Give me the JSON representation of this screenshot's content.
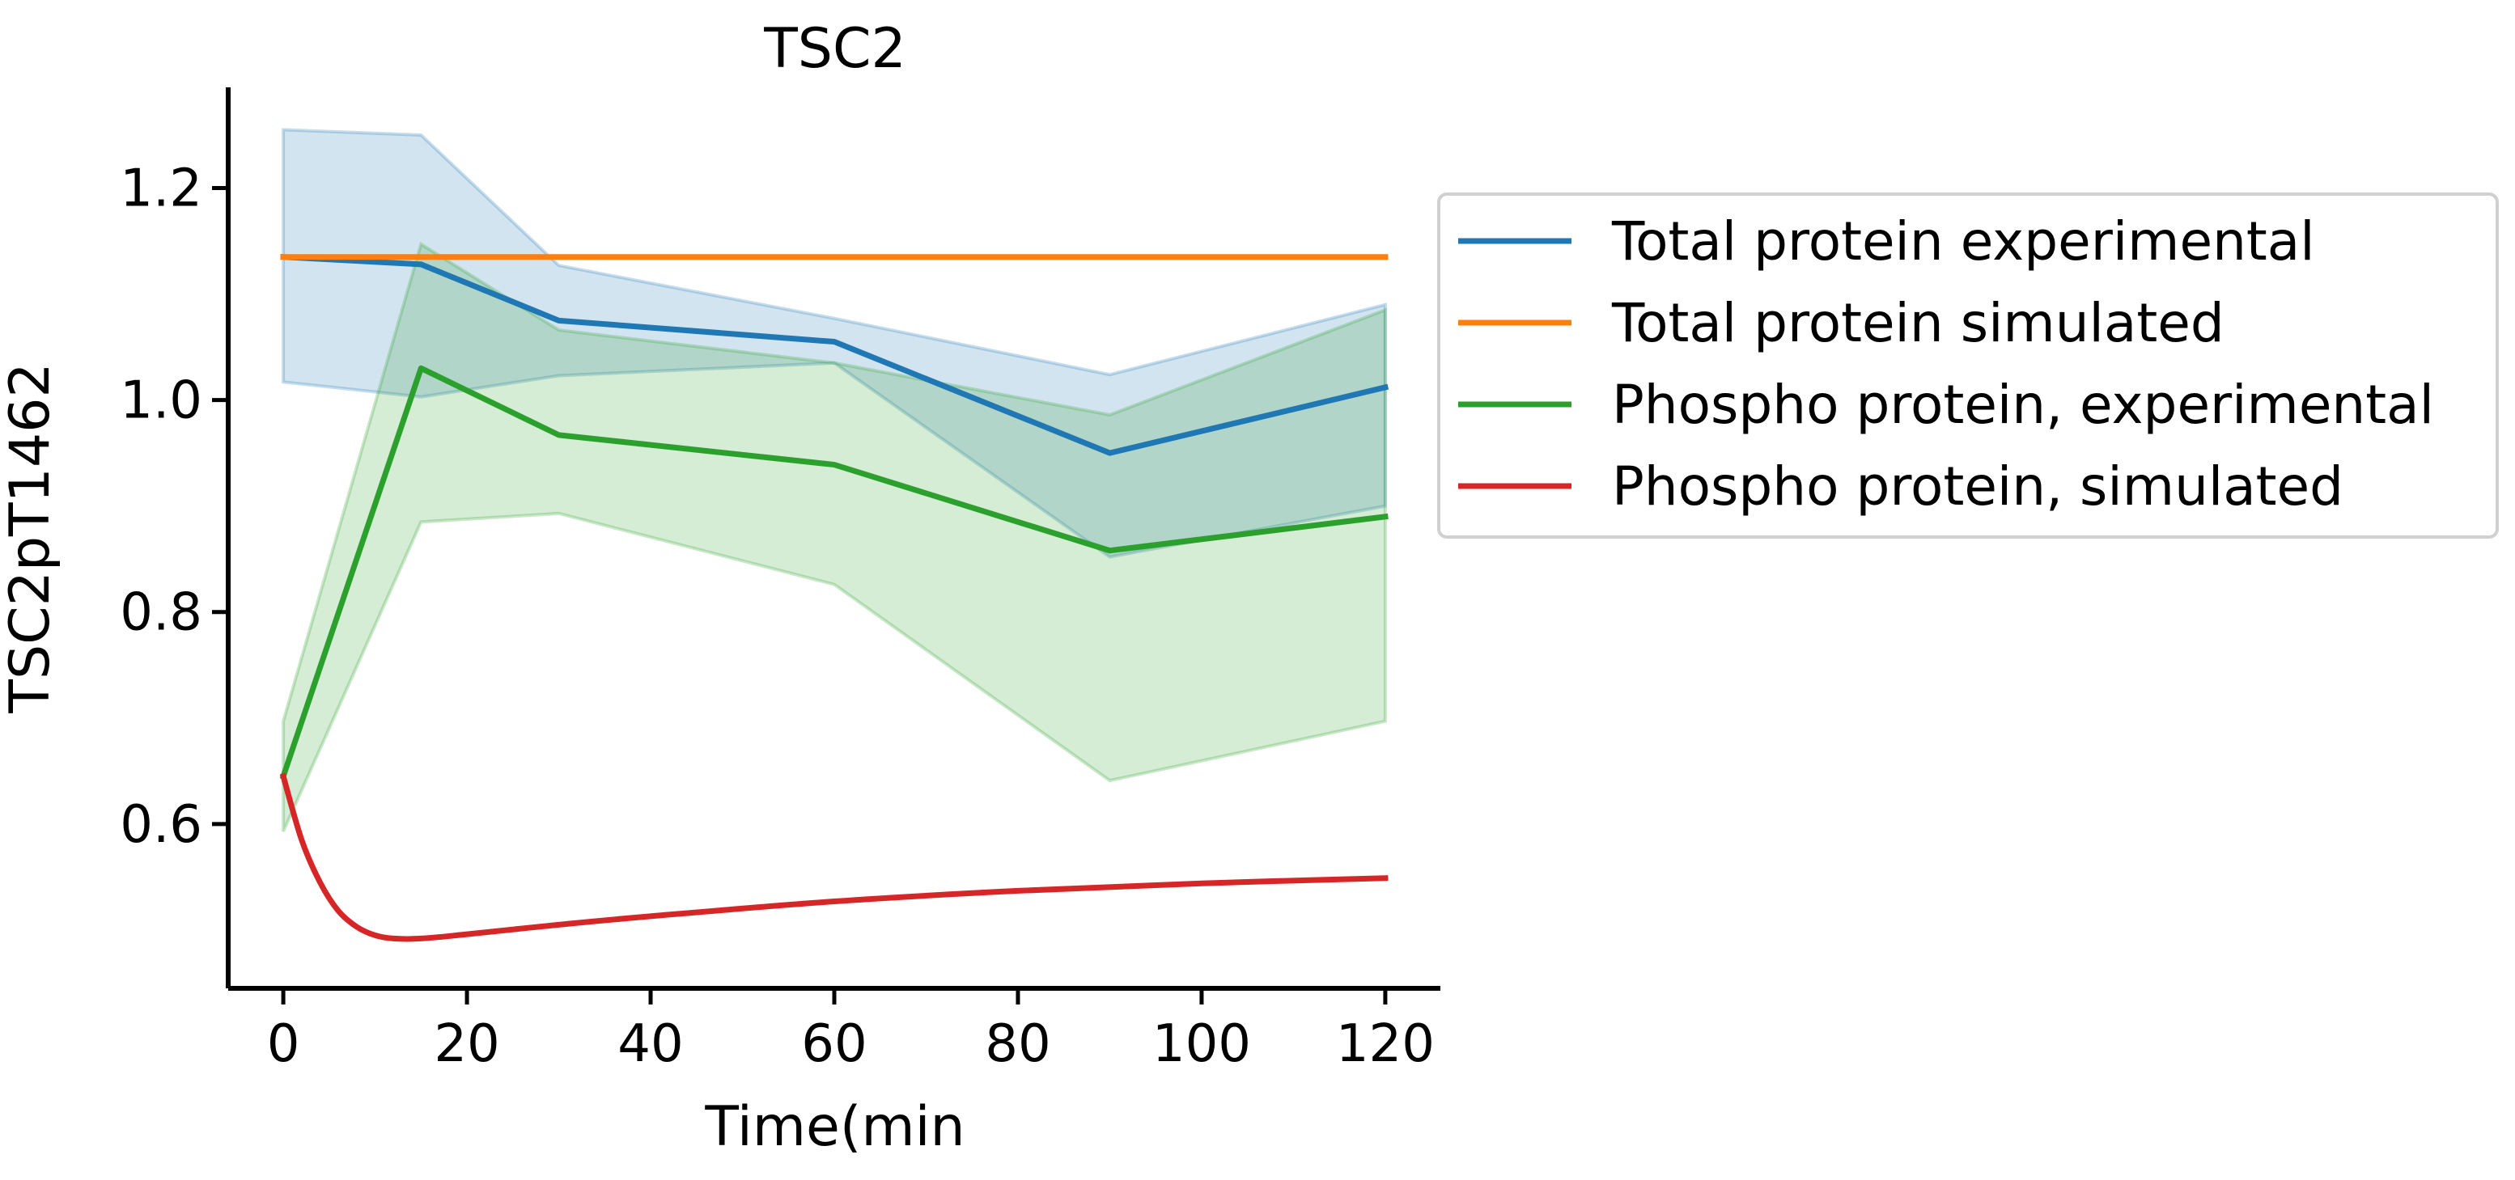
{
  "chart_data": {
    "type": "line",
    "title": "TSC2",
    "xlabel": "Time(min",
    "ylabel": "TSC2pT1462",
    "xlim": [
      -6,
      126
    ],
    "ylim": [
      0.445,
      1.295
    ],
    "xticks": [
      0,
      20,
      40,
      60,
      80,
      100,
      120
    ],
    "yticks": [
      0.6,
      0.8,
      1.0,
      1.2
    ],
    "xtick_labels": [
      "0",
      "20",
      "40",
      "60",
      "80",
      "100",
      "120"
    ],
    "ytick_labels": [
      "0.6",
      "0.8",
      "1.0",
      "1.2"
    ],
    "grid": false,
    "legend_placement": "outside-right",
    "series": [
      {
        "name": "Total protein experimental",
        "color": "#1f77b4",
        "x": [
          0,
          15,
          30,
          60,
          90,
          120
        ],
        "y": [
          1.135,
          1.128,
          1.075,
          1.055,
          0.95,
          1.012
        ],
        "band_lower": [
          1.017,
          1.003,
          1.023,
          1.035,
          0.852,
          0.9
        ],
        "band_upper": [
          1.255,
          1.25,
          1.127,
          1.077,
          1.024,
          1.09
        ]
      },
      {
        "name": "Total protein simulated",
        "color": "#ff7f0e",
        "x": [
          0,
          120
        ],
        "y": [
          1.135,
          1.135
        ]
      },
      {
        "name": "Phospho protein, experimental",
        "color": "#2ca02c",
        "x": [
          0,
          15,
          30,
          60,
          90,
          120
        ],
        "y": [
          0.645,
          1.03,
          0.967,
          0.939,
          0.858,
          0.89
        ],
        "band_lower": [
          0.593,
          0.885,
          0.893,
          0.826,
          0.641,
          0.697
        ],
        "band_upper": [
          0.697,
          1.147,
          1.066,
          1.035,
          0.986,
          1.085
        ]
      },
      {
        "name": "Phospho protein, simulated",
        "color": "#d62728",
        "x": [
          0,
          2,
          4,
          6,
          8,
          10,
          12,
          15,
          20,
          30,
          40,
          60,
          80,
          100,
          120
        ],
        "y": [
          0.645,
          0.585,
          0.545,
          0.518,
          0.503,
          0.495,
          0.492,
          0.492,
          0.496,
          0.505,
          0.513,
          0.527,
          0.537,
          0.544,
          0.549
        ]
      }
    ]
  }
}
